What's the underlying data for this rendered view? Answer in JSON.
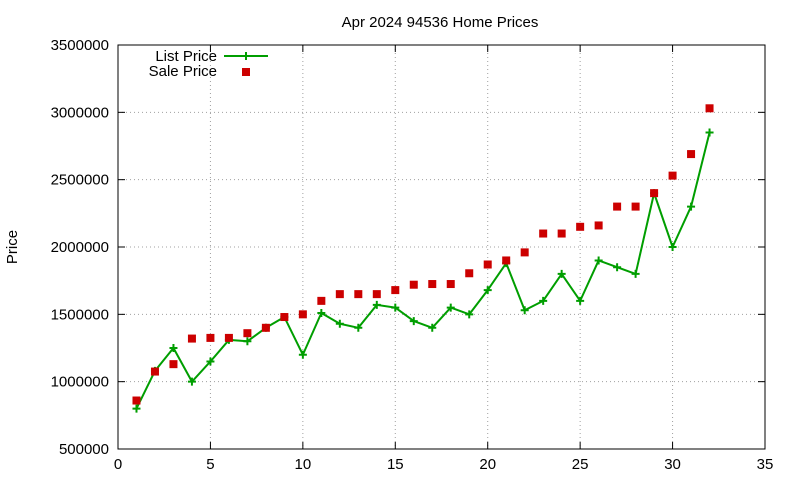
{
  "chart_data": {
    "type": "line",
    "title": "Apr 2024 94536 Home Prices",
    "xlabel": "",
    "ylabel": "Price",
    "xlim": [
      0,
      35
    ],
    "ylim": [
      500000,
      3500000
    ],
    "x_ticks": [
      0,
      5,
      10,
      15,
      20,
      25,
      30,
      35
    ],
    "y_ticks": [
      500000,
      1000000,
      1500000,
      2000000,
      2500000,
      3000000,
      3500000
    ],
    "x_tick_labels": [
      "0",
      "5",
      "10",
      "15",
      "20",
      "25",
      "30",
      "35"
    ],
    "y_tick_labels": [
      "500000",
      "1000000",
      "1500000",
      "2000000",
      "2500000",
      "3000000",
      "3500000"
    ],
    "grid": true,
    "legend_position": "top-left",
    "x": [
      1,
      2,
      3,
      4,
      5,
      6,
      7,
      8,
      9,
      10,
      11,
      12,
      13,
      14,
      15,
      16,
      17,
      18,
      19,
      20,
      21,
      22,
      23,
      24,
      25,
      26,
      27,
      28,
      29,
      30,
      31,
      32
    ],
    "series": [
      {
        "name": "List Price",
        "style": "linespoints",
        "marker": "plus",
        "color": "#009E00",
        "values": [
          800000,
          1080000,
          1250000,
          1000000,
          1150000,
          1310000,
          1300000,
          1400000,
          1480000,
          1200000,
          1510000,
          1430000,
          1400000,
          1570000,
          1550000,
          1450000,
          1400000,
          1550000,
          1500000,
          1680000,
          1880000,
          1530000,
          1600000,
          1800000,
          1600000,
          1900000,
          1850000,
          1800000,
          2400000,
          2000000,
          2300000,
          2850000
        ]
      },
      {
        "name": "Sale Price",
        "style": "points",
        "marker": "square",
        "color": "#CC0000",
        "values": [
          860000,
          1075000,
          1130000,
          1320000,
          1325000,
          1325000,
          1360000,
          1400000,
          1480000,
          1500000,
          1600000,
          1650000,
          1650000,
          1650000,
          1680000,
          1720000,
          1725000,
          1725000,
          1805000,
          1870000,
          1900000,
          1960000,
          2100000,
          2100000,
          2150000,
          2160000,
          2300000,
          2300000,
          2400000,
          2530000,
          2690000,
          3030000
        ]
      }
    ]
  }
}
